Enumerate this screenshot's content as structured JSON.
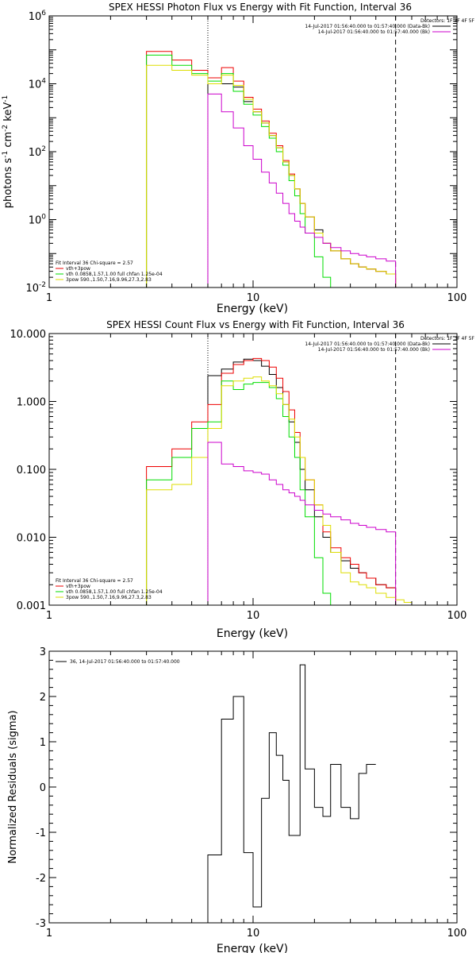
{
  "chart_data": [
    {
      "type": "line",
      "title": "SPEX HESSI Photon Flux vs Energy with Fit Function, Interval 36",
      "xlabel": "Energy (keV)",
      "ylabel_parts": {
        "a": "photons s",
        "sa": "-1",
        "b": " cm",
        "sb": "-2",
        "c": " keV",
        "sc": "-1"
      },
      "xscale": "log",
      "yscale": "log",
      "xlim": [
        1,
        100
      ],
      "ylim": [
        0.01,
        1000000
      ],
      "xticks": [
        {
          "v": 1,
          "label": "1"
        },
        {
          "v": 10,
          "label": "10"
        },
        {
          "v": 100,
          "label": "100"
        }
      ],
      "yticks": [
        {
          "v": 0.01,
          "base": "10",
          "exp": "-2"
        },
        {
          "v": 1,
          "base": "10",
          "exp": "0"
        },
        {
          "v": 100,
          "base": "10",
          "exp": "2"
        },
        {
          "v": 10000,
          "base": "10",
          "exp": "4"
        },
        {
          "v": 1000000,
          "base": "10",
          "exp": "6"
        }
      ],
      "header": {
        "detectors": "Detectors: 1F 3F 4F 5F",
        "data_line": "14-Jul-2017 01:56:40.000 to 01:57:40.000 (Data-Bk)",
        "bk_line": "14-Jul-2017 01:56:40.000 to 01:57:40.000 (Bk)",
        "data_color": "#000000",
        "bk_color": "#cc00cc"
      },
      "legend_title": "Fit Interval 36   Chi-square = 2.57",
      "legend": [
        {
          "label": "vth+3pow",
          "color": "#ee0000"
        },
        {
          "label": "vth 0.0858,1.57,1.00  full chfan 1.25e-04",
          "color": "#00dd00"
        },
        {
          "label": "3pow 590.,1.50,7.16,9.96,27.3,2.83",
          "color": "#dddd00"
        }
      ],
      "vlines": [
        {
          "x": 6.0,
          "style": "dotted",
          "color": "#000000"
        },
        {
          "x": 50.0,
          "style": "dashed",
          "color": "#000000"
        }
      ],
      "bin_edges": [
        3,
        4,
        5,
        6,
        7,
        8,
        9,
        10,
        11,
        12,
        13,
        14,
        15,
        16,
        17,
        18,
        20,
        22,
        24,
        27,
        30,
        33,
        36,
        40,
        45,
        50,
        55
      ],
      "series": [
        {
          "name": "data",
          "color": "#000000",
          "values": [
            null,
            null,
            null,
            10000,
            10000,
            8000,
            3000,
            1500,
            700,
            300,
            130,
            50,
            20,
            8,
            3,
            1.2,
            0.5,
            0.2,
            0.12,
            0.07,
            0.05,
            0.04,
            0.035,
            0.03,
            0.025,
            null
          ]
        },
        {
          "name": "vth+3pow",
          "color": "#ee0000",
          "values": [
            90000,
            50000,
            25000,
            15000,
            30000,
            12000,
            4000,
            1800,
            800,
            350,
            150,
            55,
            22,
            8,
            3,
            1.2,
            0.4,
            0.2,
            0.12,
            0.07,
            0.05,
            0.04,
            0.035,
            0.03,
            0.025,
            null
          ]
        },
        {
          "name": "vth",
          "color": "#00dd00",
          "values": [
            70000,
            35000,
            20000,
            12000,
            20000,
            6000,
            2500,
            1200,
            550,
            250,
            100,
            40,
            14,
            5,
            1.5,
            0.4,
            0.08,
            0.02,
            0.01,
            null,
            null,
            null,
            null,
            null,
            null,
            null
          ]
        },
        {
          "name": "3pow",
          "color": "#dddd00",
          "values": [
            35000,
            25000,
            18000,
            10000,
            18000,
            9000,
            3500,
            1500,
            700,
            300,
            130,
            50,
            20,
            8,
            3,
            1.2,
            0.4,
            0.2,
            0.12,
            0.07,
            0.05,
            0.04,
            0.035,
            0.03,
            0.025,
            0.01
          ]
        },
        {
          "name": "bk",
          "color": "#cc00cc",
          "values": [
            null,
            null,
            null,
            5000,
            1500,
            500,
            150,
            60,
            25,
            12,
            6,
            3,
            1.5,
            0.9,
            0.6,
            0.4,
            0.3,
            0.2,
            0.15,
            0.12,
            0.1,
            0.09,
            0.08,
            0.07,
            0.06,
            null
          ]
        }
      ]
    },
    {
      "type": "line",
      "title": "SPEX HESSI Count Flux vs Energy with Fit Function, Interval 36",
      "xlabel": "Energy (keV)",
      "xscale": "log",
      "yscale": "log",
      "xlim": [
        1,
        100
      ],
      "ylim": [
        0.001,
        10
      ],
      "xticks": [
        {
          "v": 1,
          "label": "1"
        },
        {
          "v": 10,
          "label": "10"
        },
        {
          "v": 100,
          "label": "100"
        }
      ],
      "yticks": [
        {
          "v": 0.001,
          "label": "0.001"
        },
        {
          "v": 0.01,
          "label": "0.010"
        },
        {
          "v": 0.1,
          "label": "0.100"
        },
        {
          "v": 1,
          "label": "1.000"
        },
        {
          "v": 10,
          "label": "10.000"
        }
      ],
      "header": {
        "detectors": "Detectors: 1F 3F 4F 5F",
        "data_line": "14-Jul-2017 01:56:40.000 to 01:57:40.000 (Data-Bk)",
        "bk_line": "14-Jul-2017 01:56:40.000 to 01:57:40.000 (Bk)",
        "data_color": "#000000",
        "bk_color": "#cc00cc"
      },
      "legend_title": "Fit Interval 36   Chi-square = 2.57",
      "legend": [
        {
          "label": "vth+3pow",
          "color": "#ee0000"
        },
        {
          "label": "vth 0.0858,1.57,1.00  full chfan 1.25e-04",
          "color": "#00dd00"
        },
        {
          "label": "3pow 590.,1.50,7.16,9.96,27.3,2.83",
          "color": "#dddd00"
        }
      ],
      "vlines": [
        {
          "x": 6.0,
          "style": "dotted",
          "color": "#000000"
        },
        {
          "x": 50.0,
          "style": "dashed",
          "color": "#000000"
        }
      ],
      "bin_edges": [
        3,
        4,
        5,
        6,
        7,
        8,
        9,
        10,
        11,
        12,
        13,
        14,
        15,
        16,
        17,
        18,
        20,
        22,
        24,
        27,
        30,
        33,
        36,
        40,
        45,
        50,
        55,
        60,
        66
      ],
      "series": [
        {
          "name": "data",
          "color": "#000000",
          "values": [
            null,
            null,
            null,
            2.4,
            3.0,
            3.8,
            4.2,
            4.0,
            3.3,
            2.5,
            1.6,
            0.9,
            0.5,
            0.25,
            0.1,
            0.05,
            0.02,
            0.01,
            0.006,
            0.0045,
            0.0035,
            0.003,
            0.0025,
            0.002,
            0.0018,
            null,
            null,
            null
          ]
        },
        {
          "name": "vth+3pow",
          "color": "#ee0000",
          "values": [
            0.11,
            0.2,
            0.5,
            0.9,
            2.6,
            3.5,
            4.0,
            4.3,
            4.0,
            3.2,
            2.2,
            1.4,
            0.75,
            0.35,
            0.15,
            0.07,
            0.03,
            0.012,
            0.007,
            0.005,
            0.004,
            0.003,
            0.0025,
            0.002,
            0.0018,
            null,
            null,
            null
          ]
        },
        {
          "name": "vth",
          "color": "#00dd00",
          "values": [
            0.07,
            0.15,
            0.4,
            0.5,
            2.0,
            1.5,
            1.8,
            1.9,
            1.9,
            1.6,
            1.1,
            0.6,
            0.3,
            0.15,
            0.05,
            0.02,
            0.005,
            0.0015,
            0.001,
            null,
            null,
            null,
            null,
            null,
            null,
            null,
            null,
            null
          ]
        },
        {
          "name": "3pow",
          "color": "#dddd00",
          "values": [
            0.05,
            0.06,
            0.15,
            0.4,
            1.7,
            2.0,
            2.2,
            2.3,
            2.0,
            1.7,
            1.3,
            0.9,
            0.55,
            0.3,
            0.15,
            0.07,
            0.03,
            0.015,
            0.006,
            0.003,
            0.0022,
            0.002,
            0.0018,
            0.0015,
            0.0013,
            0.0012,
            0.0011,
            0.001
          ]
        },
        {
          "name": "bk",
          "color": "#cc00cc",
          "values": [
            null,
            null,
            null,
            0.25,
            0.12,
            0.11,
            0.095,
            0.09,
            0.085,
            0.07,
            0.06,
            0.05,
            0.045,
            0.04,
            0.035,
            0.03,
            0.025,
            0.022,
            0.02,
            0.018,
            0.016,
            0.015,
            0.014,
            0.013,
            0.012,
            null,
            null,
            null
          ]
        }
      ]
    },
    {
      "type": "line",
      "title": "",
      "xlabel": "Energy (keV)",
      "ylabel": "Normalized Residuals (sigma)",
      "xscale": "log",
      "yscale": "linear",
      "xlim": [
        1,
        100
      ],
      "ylim": [
        -3,
        3
      ],
      "xticks": [
        {
          "v": 1,
          "label": "1"
        },
        {
          "v": 10,
          "label": "10"
        },
        {
          "v": 100,
          "label": "100"
        }
      ],
      "yticks": [
        {
          "v": -3,
          "label": "-3"
        },
        {
          "v": -2,
          "label": "-2"
        },
        {
          "v": -1,
          "label": "-1"
        },
        {
          "v": 0,
          "label": "0"
        },
        {
          "v": 1,
          "label": "1"
        },
        {
          "v": 2,
          "label": "2"
        },
        {
          "v": 3,
          "label": "3"
        }
      ],
      "legend": [
        {
          "label": "36, 14-Jul-2017 01:56:40.000 to 01:57:40.000",
          "color": "#000000"
        }
      ],
      "bin_edges": [
        6,
        7,
        8,
        9,
        10,
        11,
        12,
        13,
        14,
        15,
        16,
        17,
        18,
        20,
        22,
        24,
        27,
        30,
        33,
        36,
        40,
        45,
        50
      ],
      "series": [
        {
          "name": "residuals",
          "color": "#000000",
          "values": [
            -1.5,
            1.5,
            2.0,
            -1.45,
            -2.65,
            -0.25,
            1.2,
            0.7,
            0.15,
            -1.07,
            -1.07,
            2.7,
            0.4,
            -0.45,
            -0.65,
            0.5,
            -0.45,
            -0.7,
            0.3,
            0.5,
            null,
            null
          ]
        }
      ]
    }
  ]
}
